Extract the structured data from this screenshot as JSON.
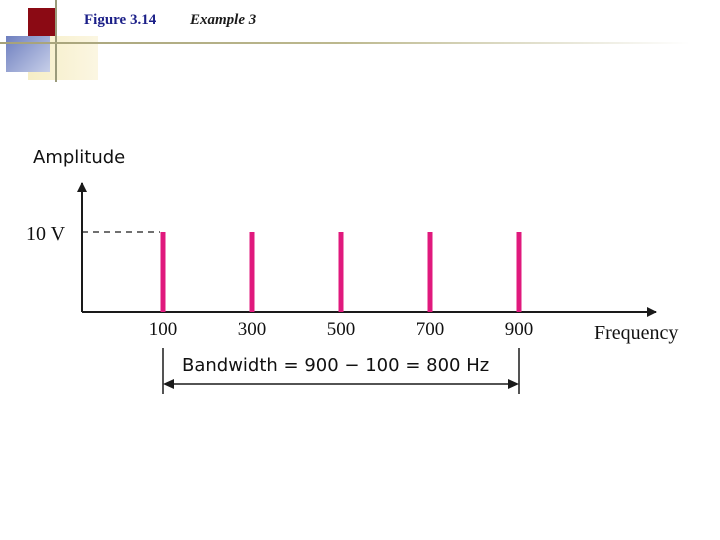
{
  "header": {
    "figure_label": "Figure 3.14",
    "figure_title": "Example 3"
  },
  "colors": {
    "bar": "#e0197d",
    "axis": "#1a1a1a"
  },
  "chart_data": {
    "type": "bar",
    "title": "",
    "xlabel": "Frequency",
    "ylabel": "Amplitude",
    "x": [
      100,
      300,
      500,
      700,
      900
    ],
    "x_tick_labels": [
      "100",
      "300",
      "500",
      "700",
      "900"
    ],
    "values": [
      10,
      10,
      10,
      10,
      10
    ],
    "y_tick_labels": [
      "10 V"
    ],
    "annotation": "Bandwidth = 900 − 100 = 800 Hz",
    "bandwidth_span": [
      100,
      900
    ]
  }
}
